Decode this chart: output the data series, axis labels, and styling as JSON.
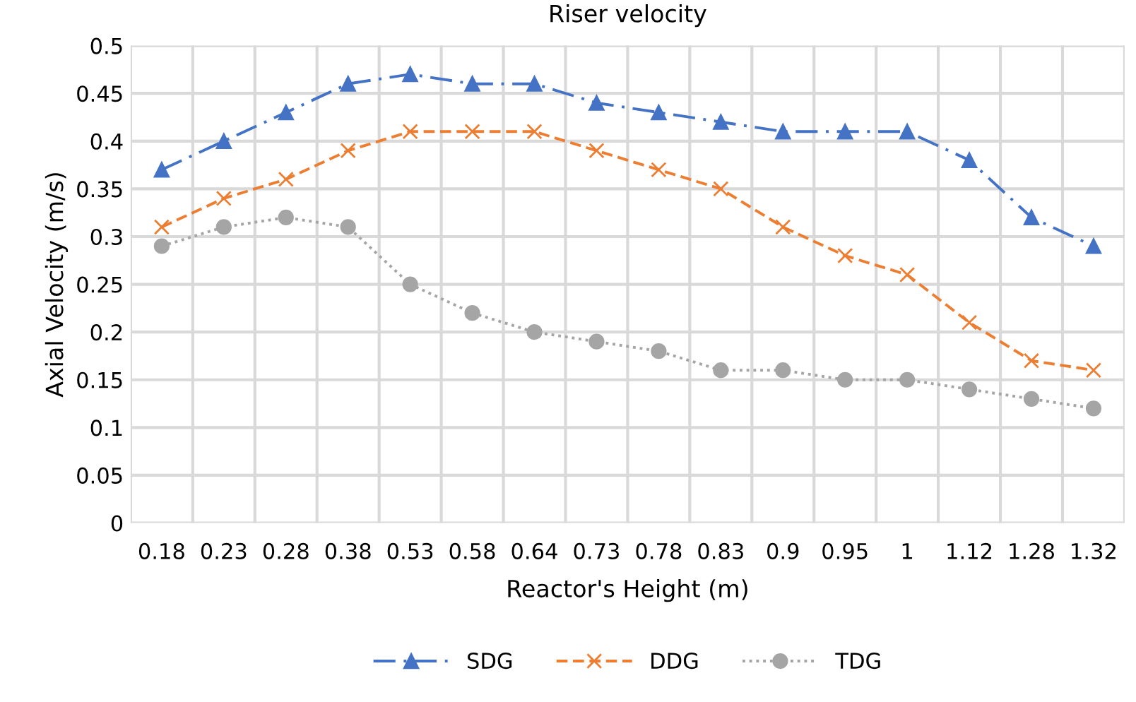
{
  "chart_data": {
    "type": "line",
    "title": "Riser velocity",
    "xlabel": "Reactor's Height (m)",
    "ylabel": "Axial Velocity (m/s)",
    "categories": [
      "0.18",
      "0.23",
      "0.28",
      "0.38",
      "0.53",
      "0.58",
      "0.64",
      "0.73",
      "0.78",
      "0.83",
      "0.9",
      "0.95",
      "1",
      "1.12",
      "1.28",
      "1.32"
    ],
    "series": [
      {
        "name": "SDG",
        "color": "#4472c4",
        "marker": "triangle",
        "line_style": "dashdot",
        "values": [
          0.37,
          0.4,
          0.43,
          0.46,
          0.47,
          0.46,
          0.46,
          0.44,
          0.43,
          0.42,
          0.41,
          0.41,
          0.41,
          0.38,
          0.32,
          0.29
        ]
      },
      {
        "name": "DDG",
        "color": "#ed7d31",
        "marker": "cross",
        "line_style": "dashed",
        "values": [
          0.31,
          0.34,
          0.36,
          0.39,
          0.41,
          0.41,
          0.41,
          0.39,
          0.37,
          0.35,
          0.31,
          0.28,
          0.26,
          0.21,
          0.17,
          0.16
        ]
      },
      {
        "name": "TDG",
        "color": "#a5a5a5",
        "marker": "circle",
        "line_style": "dotted",
        "values": [
          0.29,
          0.31,
          0.32,
          0.31,
          0.25,
          0.22,
          0.2,
          0.19,
          0.18,
          0.16,
          0.16,
          0.15,
          0.15,
          0.14,
          0.13,
          0.12
        ]
      }
    ],
    "ylim": [
      0,
      0.5
    ],
    "yticks": [
      0,
      0.05,
      0.1,
      0.15,
      0.2,
      0.25,
      0.3,
      0.35,
      0.4,
      0.45,
      0.5
    ],
    "grid": true,
    "legend": "bottom"
  }
}
